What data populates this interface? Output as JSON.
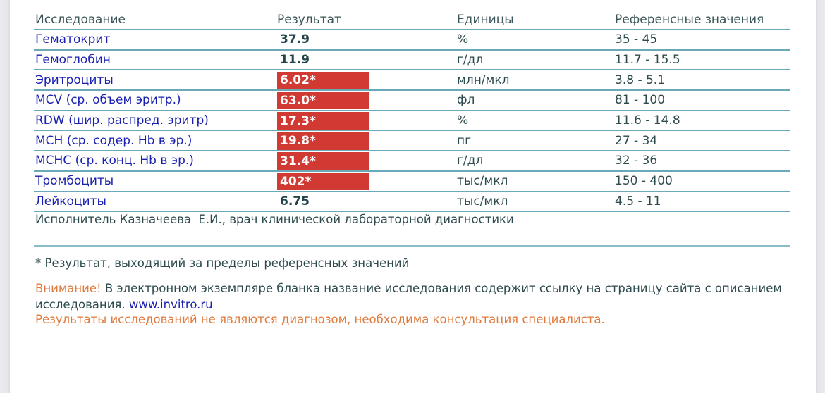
{
  "table": {
    "headers": {
      "test": "Исследование",
      "result": "Результат",
      "units": "Единицы",
      "reference": "Референсные значения"
    },
    "rows": [
      {
        "name": "Гематокрит",
        "result": "37.9",
        "flagged": false,
        "units": "%",
        "reference": "35 - 45"
      },
      {
        "name": "Гемоглобин",
        "result": "11.9",
        "flagged": false,
        "units": "г/дл",
        "reference": "11.7 - 15.5"
      },
      {
        "name": "Эритроциты",
        "result": "6.02*",
        "flagged": true,
        "units": "млн/мкл",
        "reference": "3.8 - 5.1"
      },
      {
        "name": "MCV (ср. объем эритр.)",
        "result": "63.0*",
        "flagged": true,
        "units": "фл",
        "reference": "81 - 100"
      },
      {
        "name": "RDW (шир. распред. эритр)",
        "result": "17.3*",
        "flagged": true,
        "units": "%",
        "reference": "11.6 - 14.8"
      },
      {
        "name": "MCH (ср. содер. Hb в эр.)",
        "result": "19.8*",
        "flagged": true,
        "units": "пг",
        "reference": "27 - 34"
      },
      {
        "name": "MCHC (ср. конц. Hb в эр.)",
        "result": "31.4*",
        "flagged": true,
        "units": "г/дл",
        "reference": "32 - 36"
      },
      {
        "name": "Тромбоциты",
        "result": "402*",
        "flagged": true,
        "units": "тыс/мкл",
        "reference": "150 - 400"
      },
      {
        "name": "Лейкоциты",
        "result": "6.75",
        "flagged": false,
        "units": "тыс/мкл",
        "reference": "4.5 - 11"
      }
    ]
  },
  "performer": "Исполнитель Казначеева  Е.И., врач клинической лабораторной диагностики",
  "footnote": "* Результат, выходящий за пределы референсных значений",
  "notice": {
    "warning_label": "Внимание!",
    "text": " В электронном экземпляре бланка название исследования содержит ссылку на страницу сайта с описанием исследования. ",
    "link": "www.invitro.ru"
  },
  "disclaimer": "Результаты исследований не являются диагнозом, необходима консультация специалиста.",
  "colors": {
    "flag_bg": "#d03a33",
    "link": "#1a20b0",
    "warning": "#e07a3c",
    "rule": "#6aa9b8"
  }
}
